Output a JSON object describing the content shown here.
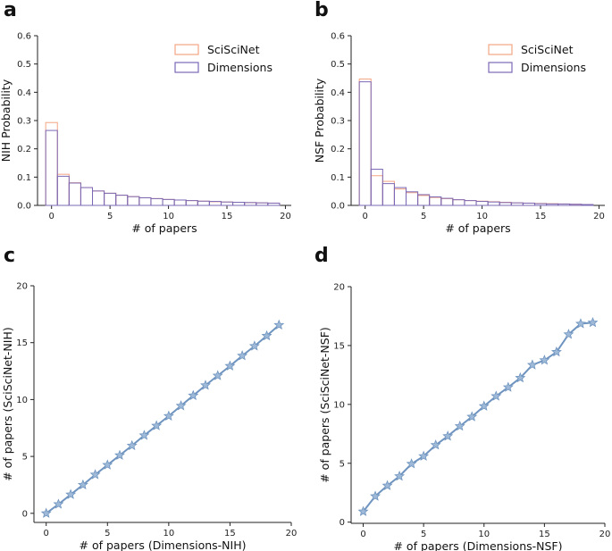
{
  "colors": {
    "scisci": "#f4a582",
    "dimensions": "#7b68b5",
    "line": "#6f94bf",
    "marker": "#9fbad8"
  },
  "chart_data": [
    {
      "panel": "a",
      "type": "bar",
      "subtype": "histogram-step",
      "xlabel": "# of papers",
      "ylabel": "NIH Probability",
      "xlim": [
        -1.2,
        20.5
      ],
      "ylim": [
        0,
        0.6
      ],
      "xticks": [
        0,
        5,
        10,
        15,
        20
      ],
      "yticks": [
        0.0,
        0.1,
        0.2,
        0.3,
        0.4,
        0.5,
        0.6
      ],
      "ytick_labels": [
        "0.0",
        "0.1",
        "0.2",
        "0.3",
        "0.4",
        "0.5",
        "0.6"
      ],
      "legend_position": "top-right",
      "categories": [
        0,
        1,
        2,
        3,
        4,
        5,
        6,
        7,
        8,
        9,
        10,
        11,
        12,
        13,
        14,
        15,
        16,
        17,
        18,
        19
      ],
      "series": [
        {
          "name": "SciSciNet",
          "color_key": "scisci",
          "values": [
            0.293,
            0.11,
            0.08,
            0.063,
            0.051,
            0.043,
            0.036,
            0.031,
            0.027,
            0.024,
            0.021,
            0.019,
            0.017,
            0.015,
            0.013,
            0.012,
            0.011,
            0.01,
            0.009,
            0.008
          ]
        },
        {
          "name": "Dimensions",
          "color_key": "dimensions",
          "values": [
            0.265,
            0.103,
            0.079,
            0.063,
            0.051,
            0.043,
            0.036,
            0.031,
            0.027,
            0.024,
            0.021,
            0.019,
            0.017,
            0.015,
            0.014,
            0.012,
            0.011,
            0.01,
            0.009,
            0.008
          ]
        }
      ]
    },
    {
      "panel": "b",
      "type": "bar",
      "subtype": "histogram-step",
      "xlabel": "# of papers",
      "ylabel": "NSF Probability",
      "xlim": [
        -1.2,
        20.5
      ],
      "ylim": [
        0,
        0.6
      ],
      "xticks": [
        0,
        5,
        10,
        15,
        20
      ],
      "yticks": [
        0.0,
        0.1,
        0.2,
        0.3,
        0.4,
        0.5,
        0.6
      ],
      "ytick_labels": [
        "0.0",
        "0.1",
        "0.2",
        "0.3",
        "0.4",
        "0.5",
        "0.6"
      ],
      "legend_position": "top-right",
      "categories": [
        0,
        1,
        2,
        3,
        4,
        5,
        6,
        7,
        8,
        9,
        10,
        11,
        12,
        13,
        14,
        15,
        16,
        17,
        18,
        19
      ],
      "series": [
        {
          "name": "SciSciNet",
          "color_key": "scisci",
          "values": [
            0.447,
            0.105,
            0.085,
            0.058,
            0.045,
            0.035,
            0.028,
            0.024,
            0.02,
            0.017,
            0.015,
            0.013,
            0.011,
            0.009,
            0.008,
            0.007,
            0.006,
            0.005,
            0.004,
            0.003
          ]
        },
        {
          "name": "Dimensions",
          "color_key": "dimensions",
          "values": [
            0.437,
            0.128,
            0.077,
            0.063,
            0.048,
            0.038,
            0.03,
            0.025,
            0.02,
            0.017,
            0.014,
            0.012,
            0.01,
            0.009,
            0.008,
            0.006,
            0.005,
            0.005,
            0.004,
            0.003
          ]
        }
      ]
    },
    {
      "panel": "c",
      "type": "line",
      "marker": "star",
      "xlabel": "# of papers (Dimensions-NIH)",
      "ylabel": "# of papers (SciSciNet-NIH)",
      "xlim": [
        -1,
        20
      ],
      "ylim": [
        -0.8,
        20
      ],
      "xticks": [
        0,
        5,
        10,
        15,
        20
      ],
      "yticks": [
        0,
        5,
        10,
        15,
        20
      ],
      "x": [
        0,
        1,
        2,
        3,
        4,
        5,
        6,
        7,
        8,
        9,
        10,
        11,
        12,
        13,
        14,
        15,
        16,
        17,
        18,
        19
      ],
      "y": [
        0.0,
        0.8,
        1.65,
        2.5,
        3.4,
        4.25,
        5.1,
        5.95,
        6.85,
        7.7,
        8.55,
        9.45,
        10.35,
        11.25,
        12.1,
        12.95,
        13.85,
        14.7,
        15.6,
        16.55
      ]
    },
    {
      "panel": "d",
      "type": "line",
      "marker": "star",
      "xlabel": "# of papers (Dimensions-NSF)",
      "ylabel": "# of papers (SciSciNet-NSF)",
      "xlim": [
        -1,
        20
      ],
      "ylim": [
        -0.1,
        20
      ],
      "xticks": [
        0,
        5,
        10,
        15,
        20
      ],
      "yticks": [
        0,
        5,
        10,
        15,
        20
      ],
      "x": [
        0,
        1,
        2,
        3,
        4,
        5,
        6,
        7,
        8,
        9,
        10,
        11,
        12,
        13,
        14,
        15,
        16,
        17,
        18,
        19
      ],
      "y": [
        0.9,
        2.2,
        3.1,
        3.9,
        4.95,
        5.6,
        6.55,
        7.3,
        8.15,
        8.95,
        9.85,
        10.7,
        11.45,
        12.25,
        13.35,
        13.75,
        14.45,
        15.95,
        16.85,
        16.95
      ]
    }
  ]
}
